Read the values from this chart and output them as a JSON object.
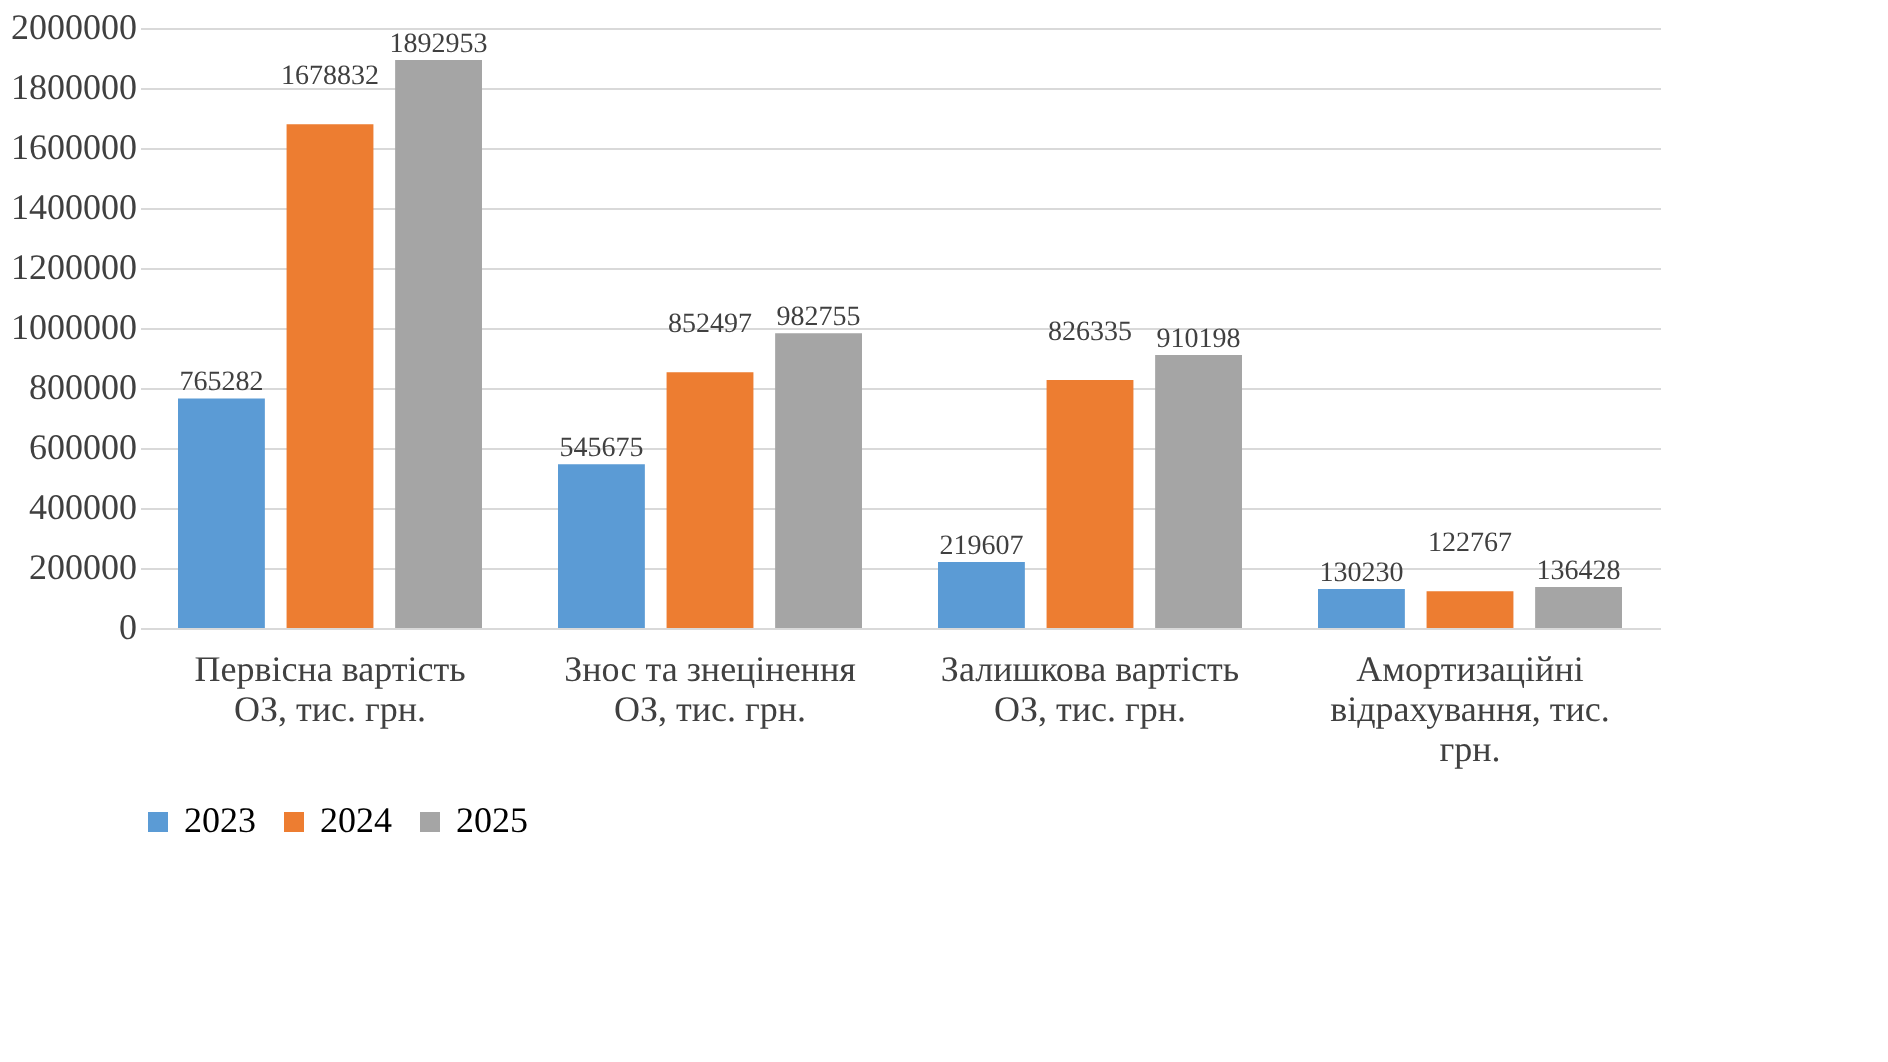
{
  "chart_data": {
    "type": "bar",
    "categories": [
      "Первісна вартість ОЗ, тис. грн.",
      "Знос та знецінення ОЗ, тис. грн.",
      "Залишкова вартість ОЗ, тис. грн.",
      "Амортизаційні відрахування, тис. грн."
    ],
    "series": [
      {
        "name": "2023",
        "color": "#5b9bd5",
        "values": [
          765282,
          545675,
          219607,
          130230
        ]
      },
      {
        "name": "2024",
        "color": "#ed7d31",
        "values": [
          1678832,
          852497,
          826335,
          122767
        ]
      },
      {
        "name": "2025",
        "color": "#a5a5a5",
        "values": [
          1892953,
          982755,
          910198,
          136428
        ]
      }
    ],
    "ylim": [
      0,
      2000000
    ],
    "yticks": [
      0,
      200000,
      400000,
      600000,
      800000,
      1000000,
      1200000,
      1400000,
      1600000,
      1800000,
      2000000
    ],
    "grid": "y",
    "legend": "bottom",
    "data_labels": true
  }
}
